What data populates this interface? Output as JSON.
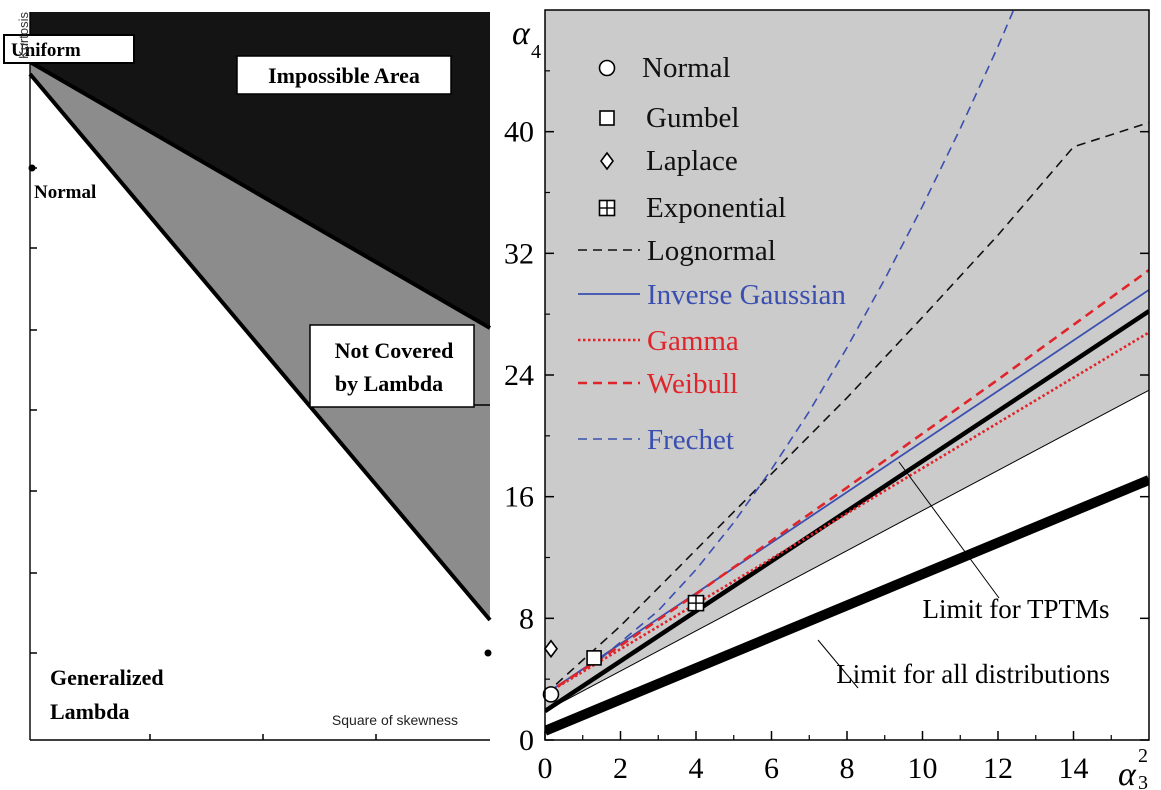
{
  "chart_data": [
    {
      "type": "area",
      "xlabel": "Square of skewness",
      "ylabel": "Kurtosis",
      "grid": false,
      "regions": [
        {
          "name": "Impossible Area",
          "color": "#141414"
        },
        {
          "name": "Not Covered by Lambda",
          "color": "#8c8c8c"
        },
        {
          "name": "Generalized Lambda",
          "color": "#ffffff"
        }
      ],
      "annotations": [
        "Uniform",
        "Normal"
      ],
      "region_labels": {
        "impossible": "Impossible Area",
        "not_covered_1": "Not Covered",
        "not_covered_2": "by Lambda",
        "generalized_1": "Generalized",
        "generalized_2": "Lambda"
      }
    },
    {
      "type": "line",
      "xlabel": "α",
      "xlabel_sub": "3",
      "xlabel_sup": "2",
      "ylabel": "α",
      "ylabel_sub": "4",
      "xlim": [
        0,
        16
      ],
      "ylim": [
        0,
        48
      ],
      "xticks": [
        0,
        2,
        4,
        6,
        8,
        10,
        12,
        14
      ],
      "xtick_labels": [
        "0",
        "2",
        "4",
        "6",
        "8",
        "10",
        "12",
        "14"
      ],
      "yticks": [
        0,
        8,
        16,
        24,
        32,
        40
      ],
      "ytick_labels": [
        "0",
        "8",
        "16",
        "24",
        "32",
        "40"
      ],
      "grid": false,
      "legend_position": "top-left",
      "series": [
        {
          "name": "Lognormal",
          "color": "#111111",
          "style": "dashed",
          "width": 1.6,
          "x": [
            0,
            2,
            4,
            6,
            8,
            10,
            12,
            14,
            16
          ],
          "y": [
            3.0,
            7.5,
            12.5,
            17.5,
            22.5,
            27.8,
            33.2,
            39.0,
            40.6
          ]
        },
        {
          "name": "Inverse Gaussian",
          "color": "#3a4fb0",
          "style": "solid",
          "width": 1.8,
          "x": [
            0,
            16
          ],
          "y": [
            3.0,
            29.6
          ]
        },
        {
          "name": "Gamma",
          "color": "#e0242a",
          "style": "dotted",
          "width": 2.6,
          "x": [
            0,
            16
          ],
          "y": [
            3.0,
            26.8
          ]
        },
        {
          "name": "Weibull",
          "color": "#e0242a",
          "style": "dashed",
          "width": 2.6,
          "x": [
            0,
            2,
            4,
            8,
            12,
            16
          ],
          "y": [
            3.0,
            6.2,
            9.6,
            16.6,
            23.7,
            30.9
          ]
        },
        {
          "name": "Frechet",
          "color": "#3a4fb0",
          "style": "dashed",
          "width": 1.6,
          "x": [
            1.5,
            3,
            4,
            5,
            6,
            7,
            8,
            9,
            10,
            11,
            12,
            12.5
          ],
          "y": [
            5.4,
            8.5,
            11.2,
            14.3,
            17.8,
            21.6,
            25.8,
            30.3,
            35.1,
            40.2,
            45.6,
            48.5
          ]
        }
      ],
      "limit_lines": [
        {
          "name": "Limit for TPTMs",
          "x": [
            0,
            16
          ],
          "y": [
            1.9,
            28.2
          ],
          "width": 4.5,
          "color": "#000000"
        },
        {
          "name": "Limit for all distributions",
          "x": [
            0,
            16
          ],
          "y": [
            0.6,
            17.1
          ],
          "width": 10,
          "color": "#000000"
        },
        {
          "name": "",
          "x": [
            0,
            16
          ],
          "y": [
            1.9,
            23.0
          ],
          "width": 1,
          "color": "#000000"
        }
      ],
      "points": [
        {
          "name": "Normal",
          "marker": "circle",
          "x": 0.0,
          "y": 3.0
        },
        {
          "name": "Gumbel",
          "marker": "square",
          "x": 1.3,
          "y": 5.4
        },
        {
          "name": "Laplace",
          "marker": "diamond",
          "x": 0.0,
          "y": 6.0
        },
        {
          "name": "Exponential",
          "marker": "squareplus",
          "x": 4.0,
          "y": 9.0
        }
      ],
      "colors": {
        "shade": "#cbcbcb",
        "blue": "#3a4fb0",
        "red": "#e0242a"
      }
    }
  ]
}
